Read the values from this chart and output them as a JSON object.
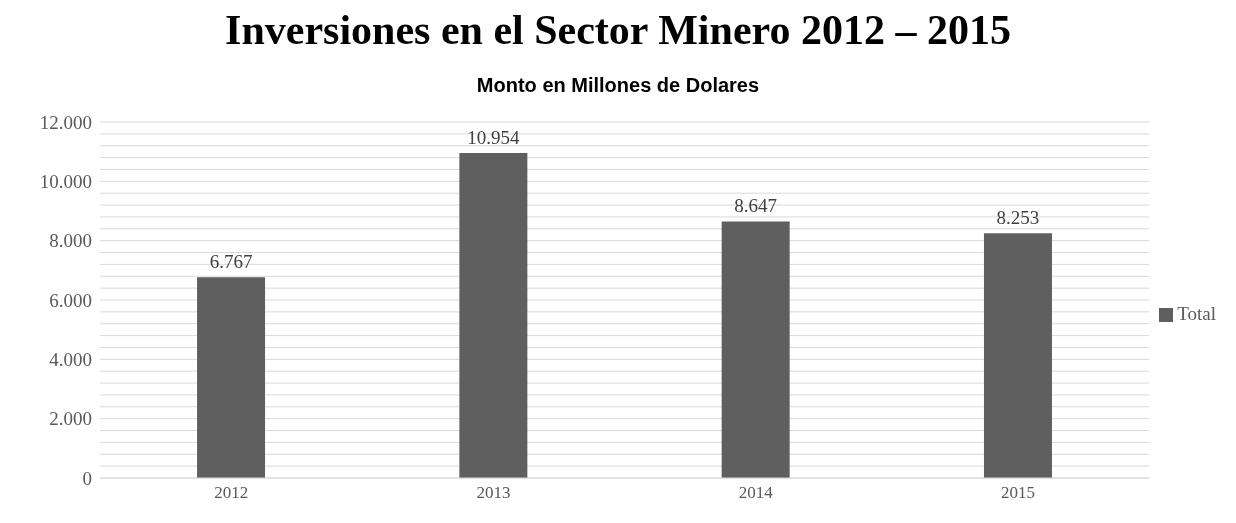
{
  "chart_data": {
    "type": "bar",
    "title": "Inversiones en el Sector Minero 2012 – 2015",
    "subtitle": "Monto en Millones de Dolares",
    "categories": [
      "2012",
      "2013",
      "2014",
      "2015"
    ],
    "series": [
      {
        "name": "Total",
        "color": "#5f5f5f",
        "values": [
          6767,
          10954,
          8647,
          8253
        ],
        "value_labels": [
          "6.767",
          "10.954",
          "8.647",
          "8.253"
        ]
      }
    ],
    "ylim": [
      0,
      12000
    ],
    "yticks": [
      0,
      {
        "value": 400,
        "label": null
      },
      {
        "value": 800,
        "label": null
      },
      {
        "value": 1200,
        "label": null
      },
      {
        "value": 1600,
        "label": null
      },
      {
        "value": 2000,
        "label": "2.000"
      },
      {
        "value": 2400,
        "label": null
      },
      {
        "value": 2800,
        "label": null
      },
      {
        "value": 3200,
        "label": null
      },
      {
        "value": 3600,
        "label": null
      },
      {
        "value": 4000,
        "label": "4.000"
      },
      {
        "value": 4400,
        "label": null
      },
      {
        "value": 4800,
        "label": null
      },
      {
        "value": 5200,
        "label": null
      },
      {
        "value": 5600,
        "label": null
      },
      {
        "value": 6000,
        "label": "6.000"
      },
      {
        "value": 6400,
        "label": null
      },
      {
        "value": 6800,
        "label": null
      },
      {
        "value": 7200,
        "label": null
      },
      {
        "value": 7600,
        "label": null
      },
      {
        "value": 8000,
        "label": "8.000"
      },
      {
        "value": 8400,
        "label": null
      },
      {
        "value": 8800,
        "label": null
      },
      {
        "value": 9200,
        "label": null
      },
      {
        "value": 9600,
        "label": null
      },
      {
        "value": 10000,
        "label": "10.000"
      },
      {
        "value": 10400,
        "label": null
      },
      {
        "value": 10800,
        "label": null
      },
      {
        "value": 11200,
        "label": null
      },
      {
        "value": 11600,
        "label": null
      },
      {
        "value": 12000,
        "label": "12.000"
      }
    ],
    "grid": "y",
    "legend": "right"
  }
}
